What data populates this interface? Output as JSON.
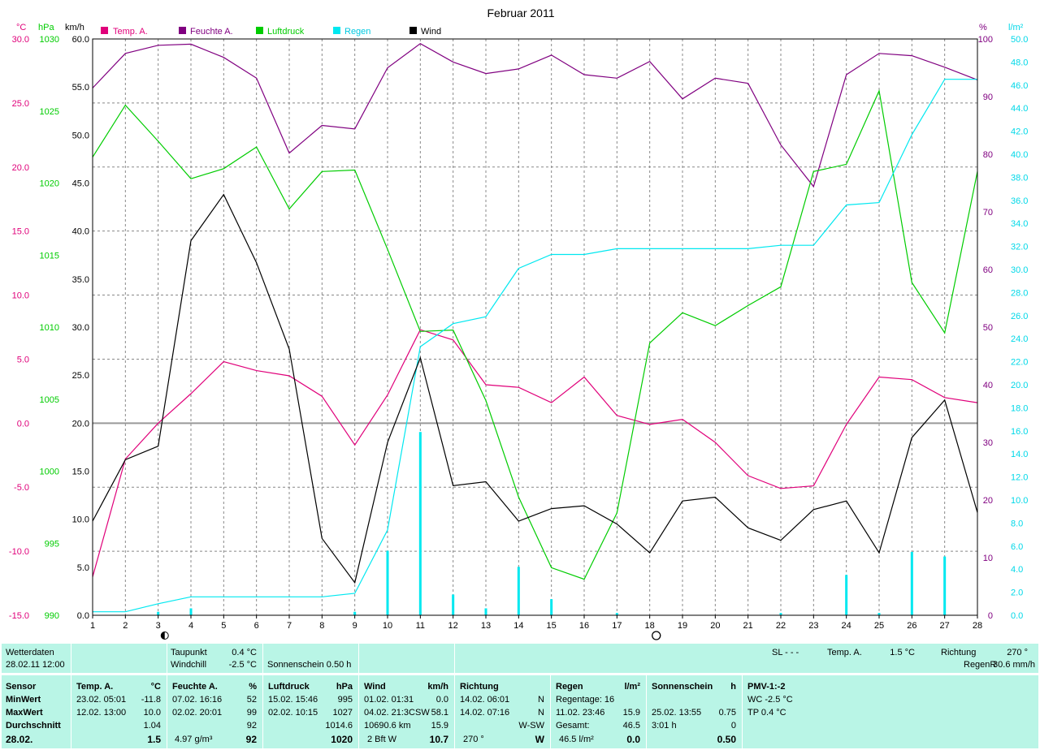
{
  "chart_data": {
    "type": "line",
    "title": "Februar 2011",
    "x": [
      1,
      2,
      3,
      4,
      5,
      6,
      7,
      8,
      9,
      10,
      11,
      12,
      13,
      14,
      15,
      16,
      17,
      18,
      19,
      20,
      21,
      22,
      23,
      24,
      25,
      26,
      27,
      28
    ],
    "xlim": [
      1,
      28
    ],
    "axes": [
      {
        "unit": "°C",
        "color": "#e0007a",
        "lim": [
          -15,
          30
        ],
        "ticks": [
          "30.0",
          "25.0",
          "20.0",
          "15.0",
          "10.0",
          "5.0",
          "0.0",
          "-5.0",
          "-10.0",
          "-15.0"
        ]
      },
      {
        "unit": "hPa",
        "color": "#00cc00",
        "lim": [
          990,
          1030
        ],
        "ticks": [
          "1030",
          "1025",
          "1020",
          "1015",
          "1010",
          "1005",
          "1000",
          "995",
          "990"
        ]
      },
      {
        "unit": "km/h",
        "color": "#000000",
        "lim": [
          0,
          60
        ],
        "ticks": [
          "60.0",
          "55.0",
          "50.0",
          "45.0",
          "40.0",
          "35.0",
          "30.0",
          "25.0",
          "20.0",
          "15.0",
          "10.0",
          "5.0",
          "0.0"
        ]
      },
      {
        "unit": "%",
        "color": "#800080",
        "lim": [
          0,
          100
        ],
        "ticks": [
          "100",
          "90",
          "80",
          "70",
          "60",
          "50",
          "40",
          "30",
          "20",
          "10",
          "0"
        ]
      },
      {
        "unit": "l/m²",
        "color": "#00d8e8",
        "lim": [
          0,
          50
        ],
        "ticks": [
          "50.0",
          "48.0",
          "46.0",
          "44.0",
          "42.0",
          "40.0",
          "38.0",
          "36.0",
          "34.0",
          "32.0",
          "30.0",
          "28.0",
          "26.0",
          "24.0",
          "22.0",
          "20.0",
          "18.0",
          "16.0",
          "14.0",
          "12.0",
          "10.0",
          "8.0",
          "6.0",
          "4.0",
          "2.0",
          "0.0"
        ]
      }
    ],
    "legend": [
      {
        "name": "Temp. A.",
        "color": "#e0007a"
      },
      {
        "name": "Feuchte A.",
        "color": "#800080"
      },
      {
        "name": "Luftdruck",
        "color": "#00cc00"
      },
      {
        "name": "Regen",
        "color": "#00e8f0"
      },
      {
        "name": "Wind",
        "color": "#000000"
      }
    ],
    "legend_position": "top",
    "grid": true,
    "series": [
      {
        "name": "Temp. A.",
        "axis": "°C",
        "color": "#e0007a",
        "values": [
          -12.0,
          -2.8,
          0.0,
          2.3,
          4.8,
          4.1,
          3.7,
          2.1,
          -1.7,
          2.2,
          7.3,
          6.5,
          3.0,
          2.8,
          1.6,
          3.6,
          0.6,
          -0.1,
          0.3,
          -1.5,
          -4.1,
          -5.1,
          -4.9,
          -0.1,
          3.6,
          3.4,
          2.0,
          1.6
        ]
      },
      {
        "name": "Feuchte A.",
        "axis": "%",
        "color": "#800080",
        "values": [
          91.5,
          97.5,
          98.9,
          99.1,
          96.8,
          93.2,
          80.2,
          85.0,
          84.4,
          95.0,
          99.2,
          96.0,
          94.0,
          94.8,
          97.2,
          93.8,
          93.2,
          96.1,
          89.6,
          93.2,
          92.3,
          81.6,
          74.4,
          93.8,
          97.5,
          97.1,
          95.1,
          92.9
        ]
      },
      {
        "name": "Luftdruck",
        "axis": "hPa",
        "color": "#00cc00",
        "values": [
          1021.8,
          1025.4,
          1022.9,
          1020.3,
          1021.0,
          1022.5,
          1018.2,
          1020.8,
          1020.9,
          1015.4,
          1009.7,
          1009.8,
          1004.9,
          998.2,
          993.3,
          992.5,
          997.1,
          1008.9,
          1011.0,
          1010.1,
          1011.5,
          1012.8,
          1020.8,
          1021.3,
          1026.4,
          1013.1,
          1009.6,
          1020.8
        ]
      },
      {
        "name": "Regen",
        "axis": "l/m²",
        "color": "#00e8f0",
        "values": [
          0.3,
          0.3,
          1.0,
          1.6,
          1.6,
          1.6,
          1.6,
          1.6,
          1.9,
          7.4,
          23.3,
          25.3,
          25.9,
          30.1,
          31.3,
          31.3,
          31.8,
          31.8,
          31.8,
          31.8,
          31.8,
          32.1,
          32.1,
          35.6,
          35.8,
          41.7,
          46.5,
          46.5
        ]
      },
      {
        "name": "Wind",
        "axis": "km/h",
        "color": "#000000",
        "values": [
          9.8,
          16.2,
          17.6,
          39.0,
          43.8,
          36.7,
          27.7,
          8.0,
          3.4,
          18.0,
          26.8,
          13.5,
          13.9,
          9.8,
          11.1,
          11.4,
          9.5,
          6.5,
          11.9,
          12.3,
          9.1,
          7.8,
          11.0,
          11.9,
          6.5,
          18.5,
          22.4,
          10.7
        ]
      },
      {
        "name": "Regen/Tag",
        "axis": "l/m²",
        "type": "bar",
        "color": "#00e8f0",
        "values": [
          0.0,
          0.0,
          0.3,
          0.6,
          0.0,
          0.0,
          0.0,
          0.0,
          0.3,
          5.6,
          15.9,
          1.8,
          0.6,
          4.2,
          1.4,
          0.0,
          0.2,
          0.0,
          0.0,
          0.0,
          0.0,
          0.2,
          0.0,
          3.5,
          0.2,
          5.5,
          5.1,
          0.0
        ]
      }
    ],
    "moon_markers": [
      {
        "day": 3,
        "phase": "new"
      },
      {
        "day": 18,
        "phase": "full"
      }
    ]
  },
  "info_panel": {
    "row1": {
      "wetterdaten": "Wetterdaten",
      "datetime": "28.02.11 12:00",
      "taupunkt_label": "Taupunkt",
      "taupunkt_value": "0.4 °C",
      "windchill_label": "Windchill",
      "windchill_value": "-2.5 °C",
      "sonnenschein": "Sonnenschein  0.50 h",
      "sl": "SL - - -",
      "temp_label": "Temp. A.",
      "temp_value": "1.5 °C",
      "richtung_label": "Richtung",
      "richtung_value": "270 °",
      "regenr_label": "RegenR",
      "regenr_value": "30.6 mm/h"
    },
    "stats": {
      "labels": [
        "Sensor",
        "MinWert",
        "MaxWert",
        "Durchschnitt",
        "28.02."
      ],
      "temp": {
        "header": "Temp. A.",
        "unit": "°C",
        "min_date": "23.02.  05:01",
        "min": "-11.8",
        "max_date": "12.02.  13:00",
        "max": "10.0",
        "avg": "1.04",
        "today": "1.5"
      },
      "feuchte": {
        "header": "Feuchte A.",
        "unit": "%",
        "min_date": "07.02.  16:16",
        "min": "52",
        "max_date": "02.02.  20:01",
        "max": "99",
        "avg": "92",
        "abs": "4.97 g/m³",
        "today": "92"
      },
      "luftdruck": {
        "header": "Luftdruck",
        "unit": "hPa",
        "min_date": "15.02.  15:46",
        "min": "995",
        "max_date": "02.02.  10:15",
        "max": "1027",
        "avg": "1014.6",
        "today": "1020"
      },
      "wind": {
        "header": "Wind",
        "unit": "km/h",
        "min_date": "01.02.  01:31",
        "min": "0.0",
        "max_date": "04.02.  21:3CSW",
        "max": "58.1",
        "dist": "10690.6 km",
        "avg": "15.9",
        "bft": "2 Bft W",
        "today": "10.7"
      },
      "richtung": {
        "header": "Richtung",
        "min_date": "14.02.  06:01",
        "min": "N",
        "max_date": "14.02.  07:16",
        "max": "N",
        "avg": "W-SW",
        "today_deg": "270 °",
        "today": "W"
      },
      "regen": {
        "header": "Regen",
        "unit": "l/m²",
        "regentage": "Regentage: 16",
        "max_date": "11.02.  23:46",
        "max": "15.9",
        "gesamt_label": "Gesamt:",
        "gesamt": "46.5",
        "month": "46.5 l/m²",
        "today": "0.0"
      },
      "sonnenschein": {
        "header": "Sonnenschein",
        "unit": "h",
        "max_date": "25.02.  13:55",
        "max": "0.75",
        "total": "3:01 h",
        "avg": "0",
        "today": "0.50"
      },
      "pmv": {
        "header": "PMV-1:-2",
        "wc": "WC -2.5 °C",
        "tp": "TP 0.4 °C"
      }
    }
  }
}
